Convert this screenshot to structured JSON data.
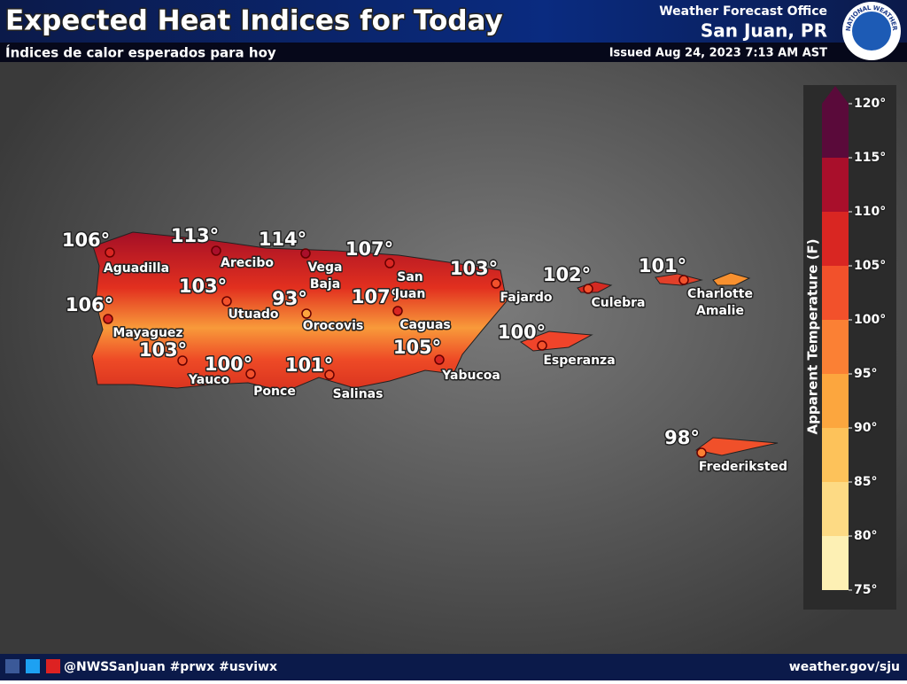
{
  "header": {
    "title": "Expected Heat Indices for Today",
    "subtitle": "Índices de calor esperados para hoy",
    "office": "Weather Forecast Office",
    "location": "San Juan, PR",
    "issued": "Issued Aug 24, 2023 7:13 AM AST",
    "logo_text": "NATIONAL WEATHER SERVICE"
  },
  "temperatures": [
    {
      "value": 106,
      "label": "106°"
    },
    {
      "value": 113,
      "label": "113°"
    },
    {
      "value": 114,
      "label": "114°"
    },
    {
      "value": 107,
      "label": "107°"
    },
    {
      "value": 103,
      "label": "103°"
    },
    {
      "value": 102,
      "label": "102°"
    },
    {
      "value": 101,
      "label": "101°"
    },
    {
      "value": 103,
      "label": "103°"
    },
    {
      "value": 93,
      "label": "93°"
    },
    {
      "value": 107,
      "label": "107°"
    },
    {
      "value": 106,
      "label": "106°"
    },
    {
      "value": 100,
      "label": "100°"
    },
    {
      "value": 103,
      "label": "103°"
    },
    {
      "value": 100,
      "label": "100°"
    },
    {
      "value": 101,
      "label": "101°"
    },
    {
      "value": 105,
      "label": "105°"
    },
    {
      "value": 98,
      "label": "98°"
    }
  ],
  "places": [
    [
      "Aguadilla"
    ],
    [
      "Arecibo"
    ],
    [
      "Vega",
      "Baja"
    ],
    [
      "San",
      "Juan"
    ],
    [
      "Fajardo"
    ],
    [
      "Culebra"
    ],
    [
      "Charlotte",
      "Amalie"
    ],
    [
      "Utuado"
    ],
    [
      "Orocovis"
    ],
    [
      "Caguas"
    ],
    [
      "Mayaguez"
    ],
    [
      "Esperanza"
    ],
    [
      "Yauco"
    ],
    [
      "Ponce"
    ],
    [
      "Salinas"
    ],
    [
      "Yabucoa"
    ],
    [
      "Frederiksted"
    ]
  ],
  "legend": {
    "title": "Apparent Temperature (F)",
    "range": [
      75,
      120
    ],
    "colors": [
      "#fdf0b4",
      "#fdda84",
      "#fdc25a",
      "#fca63e",
      "#fb8034",
      "#f2512b",
      "#d92622",
      "#a90f2b",
      "#5a0a3a"
    ],
    "ticks": [
      {
        "value": 75,
        "label": "75°"
      },
      {
        "value": 80,
        "label": "80°"
      },
      {
        "value": 85,
        "label": "85°"
      },
      {
        "value": 90,
        "label": "90°"
      },
      {
        "value": 95,
        "label": "95°"
      },
      {
        "value": 100,
        "label": "100°"
      },
      {
        "value": 105,
        "label": "105°"
      },
      {
        "value": 110,
        "label": "110°"
      },
      {
        "value": 115,
        "label": "115°"
      },
      {
        "value": 120,
        "label": "120°"
      }
    ]
  },
  "footer": {
    "social": "@NWSSanJuan #prwx #usviwx",
    "website": "weather.gov/sju"
  }
}
